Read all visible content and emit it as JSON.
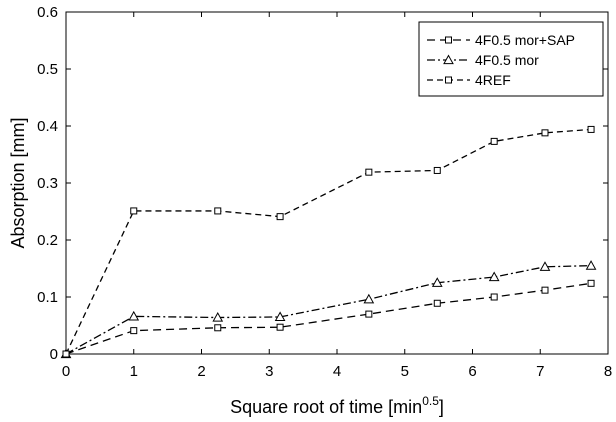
{
  "chart_data": {
    "type": "line",
    "title": "",
    "xlabel": "Square root of time [min",
    "xlabel_sup": "0.5",
    "xlabel_suffix": "]",
    "ylabel": "Absorption [mm]",
    "xlim": [
      0,
      8
    ],
    "ylim": [
      0,
      0.6
    ],
    "xticks": [
      0,
      1,
      2,
      3,
      4,
      5,
      6,
      7,
      8
    ],
    "yticks": [
      0,
      0.1,
      0.2,
      0.3,
      0.4,
      0.5,
      0.6
    ],
    "ytick_labels": [
      "0",
      "0.1",
      "0.2",
      "0.3",
      "0.4",
      "0.5",
      "0.6"
    ],
    "grid": false,
    "legend_position": "top-right",
    "series": [
      {
        "name": "4F0.5 mor+SAP",
        "marker": "square",
        "dash": "8,5",
        "x": [
          0,
          1,
          2.24,
          3.16,
          4.47,
          5.48,
          6.32,
          7.07,
          7.75
        ],
        "y": [
          0,
          0.041,
          0.046,
          0.047,
          0.07,
          0.089,
          0.1,
          0.112,
          0.124
        ]
      },
      {
        "name": "4F0.5 mor",
        "marker": "triangle",
        "dash": "8,3,2,3",
        "x": [
          0,
          1,
          2.24,
          3.16,
          4.47,
          5.48,
          6.32,
          7.07,
          7.75
        ],
        "y": [
          0,
          0.066,
          0.064,
          0.065,
          0.096,
          0.125,
          0.135,
          0.153,
          0.155
        ]
      },
      {
        "name": "4REF",
        "marker": "square",
        "dash": "6,4",
        "x": [
          0,
          1,
          2.24,
          3.16,
          4.47,
          5.48,
          6.32,
          7.07,
          7.75
        ],
        "y": [
          0,
          0.251,
          0.251,
          0.241,
          0.319,
          0.322,
          0.373,
          0.388,
          0.394
        ]
      }
    ]
  }
}
